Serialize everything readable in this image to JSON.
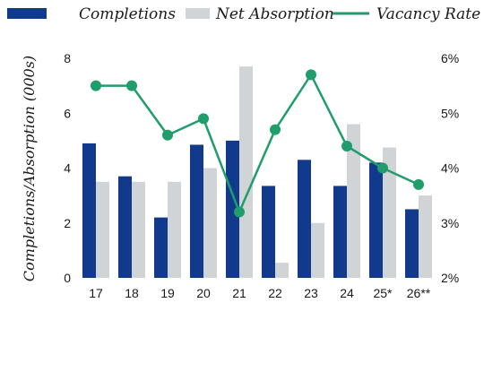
{
  "chart_data": {
    "type": "bar",
    "categories": [
      "17",
      "18",
      "19",
      "20",
      "21",
      "22",
      "23",
      "24",
      "25*",
      "26**"
    ],
    "series": [
      {
        "name": "Completions",
        "kind": "bar",
        "axis": "left",
        "color": "#123a8c",
        "values": [
          4.9,
          3.7,
          2.2,
          4.85,
          5.0,
          3.35,
          4.3,
          3.35,
          4.2,
          2.5
        ]
      },
      {
        "name": "Net Absorption",
        "kind": "bar",
        "axis": "left",
        "color": "#d1d4d6",
        "values": [
          3.5,
          3.5,
          3.5,
          4.0,
          7.7,
          0.55,
          2.0,
          5.6,
          4.75,
          3.0
        ]
      },
      {
        "name": "Vacancy Rate",
        "kind": "line",
        "axis": "right",
        "color": "#1f9d6b",
        "values": [
          5.5,
          5.5,
          4.6,
          4.9,
          3.2,
          4.7,
          5.7,
          4.4,
          4.0,
          3.7
        ]
      }
    ],
    "ylabel": "Completions/Absorption (000s)",
    "ylim": [
      0,
      8
    ],
    "yticks": [
      "0",
      "2",
      "4",
      "6",
      "8"
    ],
    "y2lim": [
      2,
      6
    ],
    "y2ticks": [
      "2%",
      "3%",
      "4%",
      "5%",
      "6%"
    ],
    "legend_position": "top",
    "grid": false
  }
}
